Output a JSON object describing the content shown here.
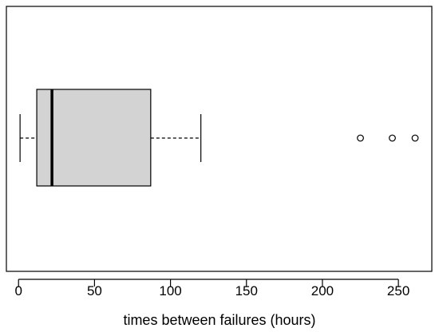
{
  "chart_data": {
    "type": "boxplot",
    "orientation": "horizontal",
    "title": "",
    "xlabel": "times between failures (hours)",
    "ylabel": "",
    "xlim": [
      -8,
      272
    ],
    "x_ticks": [
      0,
      50,
      100,
      150,
      200,
      250
    ],
    "grid": false,
    "legend": "none",
    "box": {
      "whisker_low": 1,
      "q1": 12,
      "median": 22,
      "q3": 87,
      "whisker_high": 120,
      "outliers": [
        225,
        246,
        261
      ]
    },
    "colors": {
      "box_fill": "#d3d3d3",
      "stroke": "#000000",
      "background": "#ffffff"
    }
  }
}
